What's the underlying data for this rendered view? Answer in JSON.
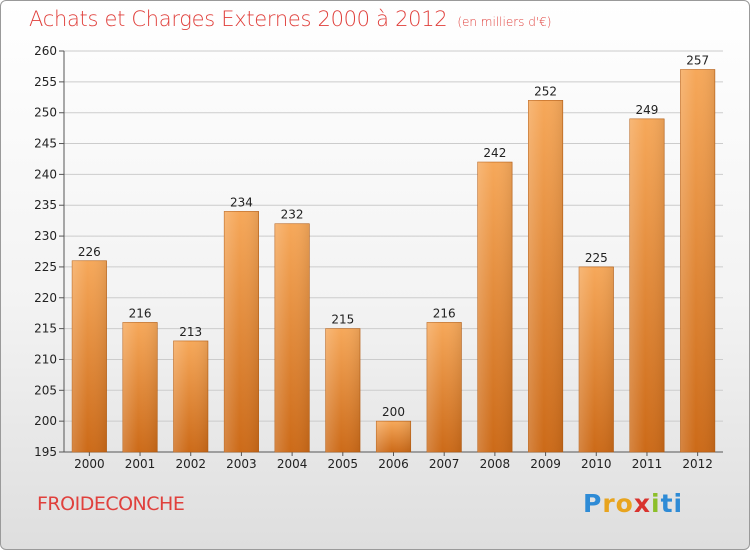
{
  "header": {
    "title": "Achats et Charges Externes 2000 à 2012",
    "subtitle": "(en milliers d'€)"
  },
  "footer": {
    "place": "FROIDECONCHE",
    "logo_letters": [
      "P",
      "r",
      "o",
      "x",
      "i",
      "ti"
    ]
  },
  "chart_data": {
    "type": "bar",
    "title": "Achats et Charges Externes 2000 à 2012",
    "subtitle": "(en milliers d'€)",
    "categories": [
      "2000",
      "2001",
      "2002",
      "2003",
      "2004",
      "2005",
      "2006",
      "2007",
      "2008",
      "2009",
      "2010",
      "2011",
      "2012"
    ],
    "values": [
      226,
      216,
      213,
      234,
      232,
      215,
      200,
      216,
      242,
      252,
      225,
      249,
      257
    ],
    "ylim": [
      195,
      260
    ],
    "yticks": [
      195,
      200,
      205,
      210,
      215,
      220,
      225,
      230,
      235,
      240,
      245,
      250,
      255,
      260
    ],
    "grid": true,
    "legend": "none",
    "colors": {
      "bar_top": "#f6a85a",
      "bar_bottom": "#cc6a18",
      "grid": "#cccccc"
    }
  }
}
